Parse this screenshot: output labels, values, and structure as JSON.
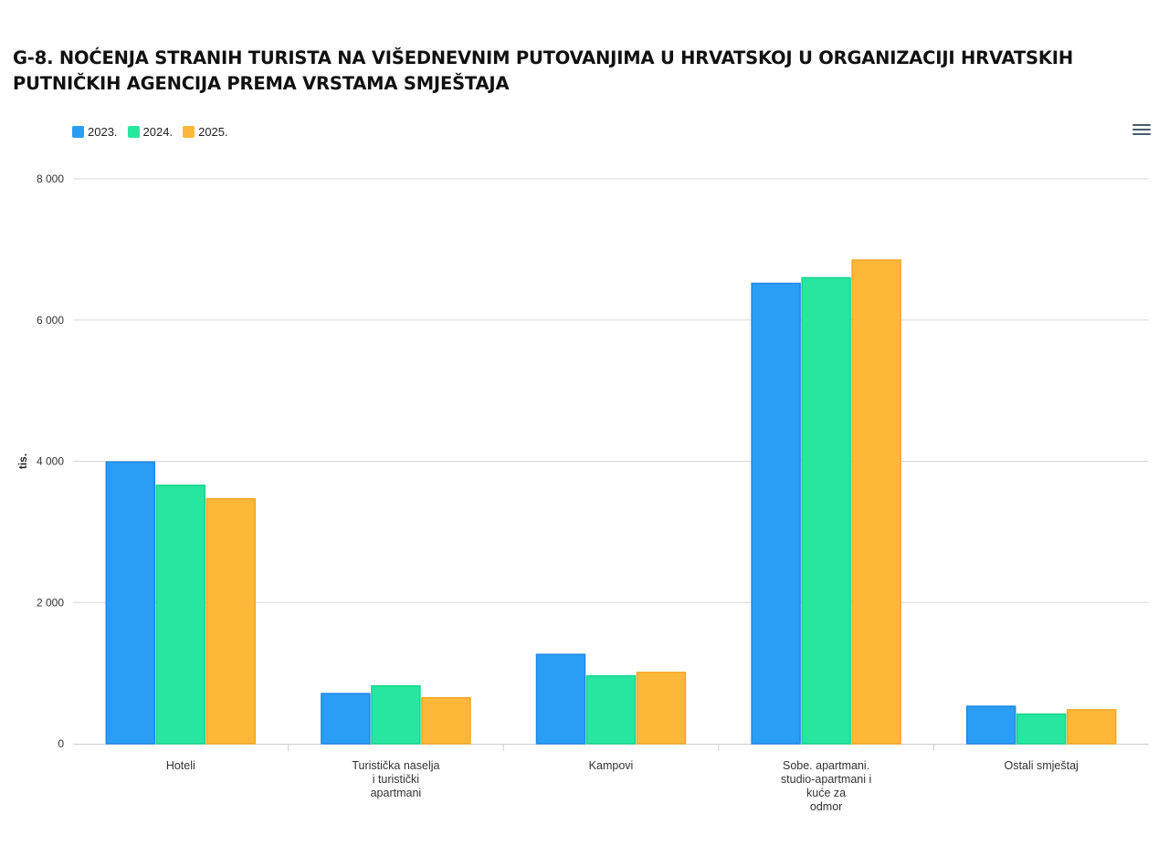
{
  "chart_data": {
    "type": "bar",
    "title": "G-8. NOĆENJA STRANIH TURISTA NA VIŠEDNEVNIM PUTOVANJIMA U HRVATSKOJ U ORGANIZACIJI HRVATSKIH PUTNIČKIH AGENCIJA PREMA VRSTAMA SMJEŠTAJA",
    "ylabel": "tis.",
    "xlabel": "",
    "ylim": [
      0,
      8000
    ],
    "yticks": [
      0,
      2000,
      4000,
      6000,
      8000
    ],
    "ytick_labels": [
      "0",
      "2 000",
      "4 000",
      "6 000",
      "8 000"
    ],
    "categories": [
      [
        "Hoteli"
      ],
      [
        "Turistička naselja",
        "i turistički",
        "apartmani"
      ],
      [
        "Kampovi"
      ],
      [
        "Sobe. apartmani.",
        "studio-apartmani i",
        "kuće za",
        "odmor"
      ],
      [
        "Ostali smještaj"
      ]
    ],
    "series": [
      {
        "name": "2023.",
        "color": "#2a9df4",
        "stroke": "#1e88e5",
        "values": [
          3990,
          710,
          1265,
          6520,
          530
        ]
      },
      {
        "name": "2024.",
        "color": "#27e6a0",
        "stroke": "#19d68e",
        "values": [
          3660,
          820,
          960,
          6600,
          420
        ]
      },
      {
        "name": "2025.",
        "color": "#fdb83a",
        "stroke": "#f5a623",
        "values": [
          3470,
          650,
          1010,
          6850,
          480
        ]
      }
    ],
    "grid": true,
    "legend": "top-left"
  },
  "toolbar": {
    "menu_icon": "hamburger-menu-icon"
  }
}
